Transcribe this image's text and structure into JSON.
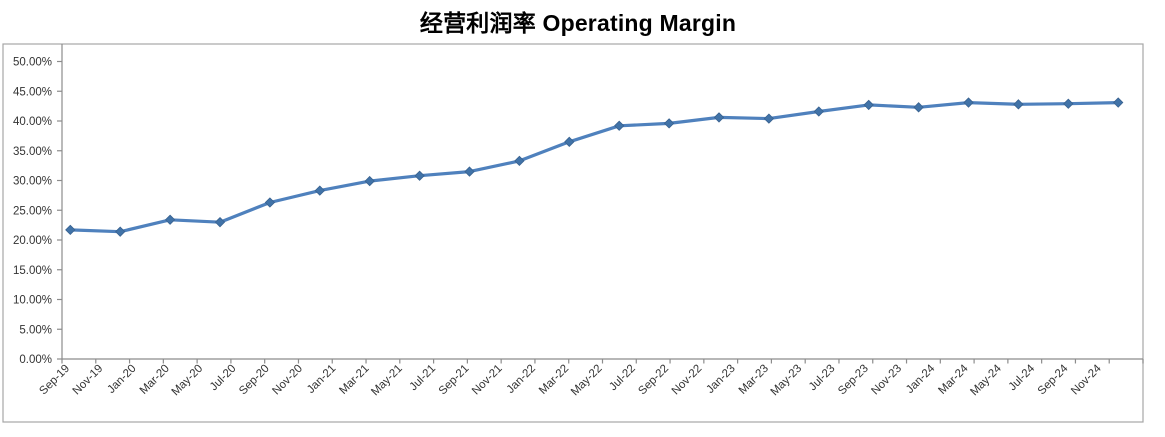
{
  "chart_data": {
    "type": "line",
    "title": "经营利润率 Operating Margin",
    "legend": "none",
    "grid": false,
    "ylim": [
      0,
      50
    ],
    "y_ticks": [
      {
        "value": 50,
        "label": "50.00%"
      },
      {
        "value": 45,
        "label": "45.00%"
      },
      {
        "value": 40,
        "label": "40.00%"
      },
      {
        "value": 35,
        "label": "35.00%"
      },
      {
        "value": 30,
        "label": "30.00%"
      },
      {
        "value": 25,
        "label": "25.00%"
      },
      {
        "value": 20,
        "label": "20.00%"
      },
      {
        "value": 15,
        "label": "15.00%"
      },
      {
        "value": 10,
        "label": "10.00%"
      },
      {
        "value": 5,
        "label": "5.00%"
      },
      {
        "value": 0,
        "label": "0.00%"
      }
    ],
    "x_axis_labels": [
      "Sep-19",
      "Nov-19",
      "Jan-20",
      "Mar-20",
      "May-20",
      "Jul-20",
      "Sep-20",
      "Nov-20",
      "Jan-21",
      "Mar-21",
      "May-21",
      "Jul-21",
      "Sep-21",
      "Nov-21",
      "Jan-22",
      "Mar-22",
      "May-22",
      "Jul-22",
      "Sep-22",
      "Nov-22",
      "Jan-23",
      "Mar-23",
      "May-23",
      "Jul-23",
      "Sep-23",
      "Nov-23",
      "Jan-24",
      "Mar-24",
      "May-24",
      "Jul-24",
      "Sep-24",
      "Nov-24"
    ],
    "x_axis_label_interval_months": 2,
    "point_interval_months": 3,
    "points": [
      "Sep-19",
      "Dec-19",
      "Mar-20",
      "Jun-20",
      "Sep-20",
      "Dec-20",
      "Mar-21",
      "Jun-21",
      "Sep-21",
      "Dec-21",
      "Mar-22",
      "Jun-22",
      "Sep-22",
      "Dec-22",
      "Mar-23",
      "Jun-23",
      "Sep-23",
      "Dec-23",
      "Mar-24",
      "Jun-24",
      "Sep-24",
      "Dec-24"
    ],
    "series": [
      {
        "name": "Operating Margin %",
        "marker": "diamond",
        "values": [
          21.7,
          21.4,
          23.4,
          23.0,
          26.3,
          28.3,
          29.9,
          30.8,
          31.5,
          33.3,
          36.5,
          39.2,
          39.6,
          40.6,
          40.4,
          41.6,
          42.7,
          42.3,
          43.1,
          42.8,
          42.9,
          43.1
        ]
      }
    ],
    "colors": {
      "line": "#4F81BD",
      "marker_fill": "#4173A8",
      "marker_edge": "#38618F",
      "axis_line": "#8C8C8C",
      "chart_border": "#A6A6A6",
      "tick_text": "#333333",
      "title_text": "#000000",
      "background": "#FFFFFF"
    }
  }
}
